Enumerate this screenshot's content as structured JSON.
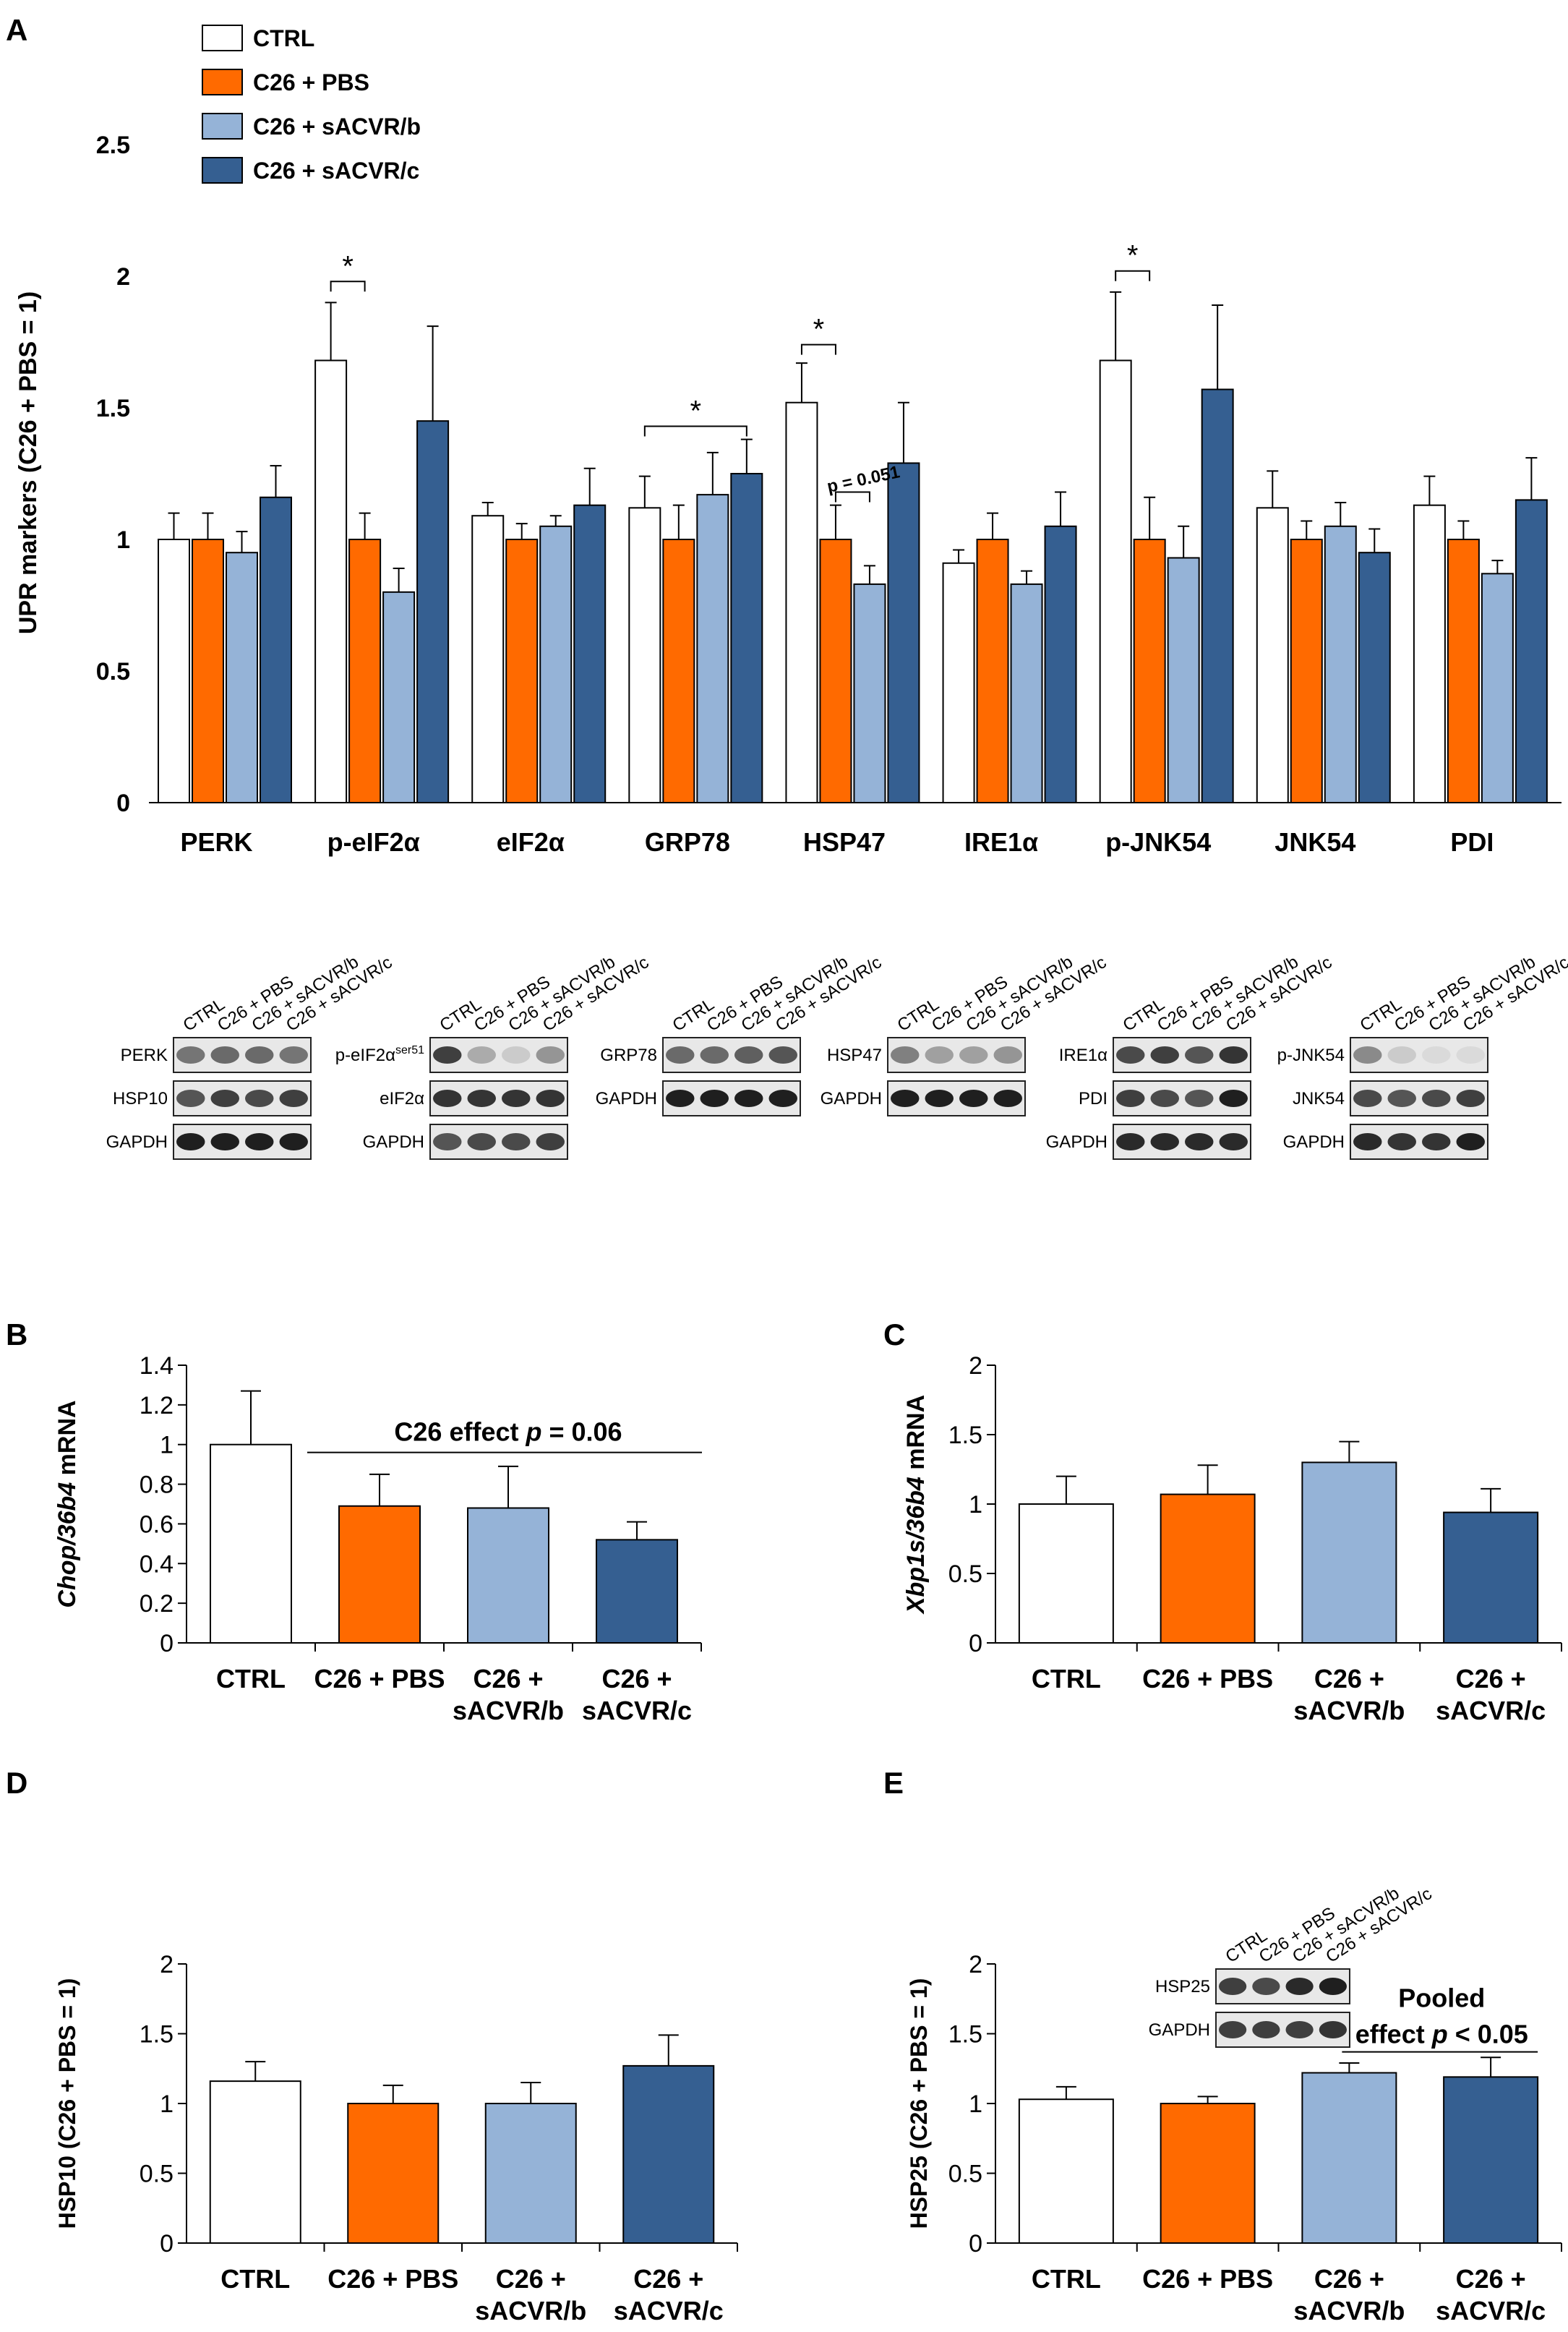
{
  "colors": {
    "ctrl": "#ffffff",
    "pbs": "#ff6a00",
    "sacvr_b": "#95b3d7",
    "sacvr_c": "#355f91"
  },
  "chart_data": [
    {
      "panel": "A",
      "type": "bar",
      "ylabel": "UPR markers (C26 + PBS = 1)",
      "ylim": [
        0,
        2.5
      ],
      "yticks": [
        "0",
        "0.5",
        "1",
        "1.5",
        "2",
        "2.5"
      ],
      "categories": [
        "PERK",
        "p-eIF2α",
        "eIF2α",
        "GRP78",
        "HSP47",
        "IRE1α",
        "p-JNK54",
        "JNK54",
        "PDI"
      ],
      "legend": [
        "CTRL",
        "C26 + PBS",
        "C26 + sACVR/b",
        "C26 + sACVR/c"
      ],
      "series": [
        {
          "name": "CTRL",
          "values": [
            1.0,
            1.68,
            1.09,
            1.12,
            1.52,
            0.91,
            1.68,
            1.12,
            1.13
          ],
          "errors": [
            0.1,
            0.22,
            0.05,
            0.12,
            0.15,
            0.05,
            0.26,
            0.14,
            0.11
          ]
        },
        {
          "name": "C26 + PBS",
          "values": [
            1.0,
            1.0,
            1.0,
            1.0,
            1.0,
            1.0,
            1.0,
            1.0,
            1.0
          ],
          "errors": [
            0.1,
            0.1,
            0.06,
            0.13,
            0.13,
            0.1,
            0.16,
            0.07,
            0.07
          ]
        },
        {
          "name": "C26 + sACVR/b",
          "values": [
            0.95,
            0.8,
            1.05,
            1.17,
            0.83,
            0.83,
            0.93,
            1.05,
            0.87
          ],
          "errors": [
            0.08,
            0.09,
            0.04,
            0.16,
            0.07,
            0.05,
            0.12,
            0.09,
            0.05
          ]
        },
        {
          "name": "C26 + sACVR/c",
          "values": [
            1.16,
            1.45,
            1.13,
            1.25,
            1.29,
            1.05,
            1.57,
            0.95,
            1.15
          ],
          "errors": [
            0.12,
            0.36,
            0.14,
            0.13,
            0.23,
            0.13,
            0.32,
            0.09,
            0.16
          ]
        }
      ],
      "annotations": [
        "*",
        "*",
        "*",
        "*",
        "p = 0.051"
      ]
    },
    {
      "panel": "B",
      "type": "bar",
      "ylabel_italic": "Chop/36b4",
      "ylabel_rest": " mRNA",
      "ylim": [
        0,
        1.4
      ],
      "yticks": [
        "0",
        "0.2",
        "0.4",
        "0.6",
        "0.8",
        "1",
        "1.2",
        "1.4"
      ],
      "categories": [
        [
          "CTRL"
        ],
        [
          "C26 + PBS"
        ],
        [
          "C26 +",
          "sACVR/b"
        ],
        [
          "C26 +",
          "sACVR/c"
        ]
      ],
      "values": [
        1.0,
        0.69,
        0.68,
        0.52
      ],
      "errors": [
        0.27,
        0.16,
        0.21,
        0.09
      ],
      "annotation_prefix": "C26 effect ",
      "annotation_p": "p",
      "annotation_suffix": " = 0.06"
    },
    {
      "panel": "C",
      "type": "bar",
      "ylabel_italic": "Xbp1s/36b4",
      "ylabel_rest": " mRNA",
      "ylim": [
        0,
        2
      ],
      "yticks": [
        "0",
        "0.5",
        "1",
        "1.5",
        "2"
      ],
      "categories": [
        [
          "CTRL"
        ],
        [
          "C26 + PBS"
        ],
        [
          "C26 +",
          "sACVR/b"
        ],
        [
          "C26 +",
          "sACVR/c"
        ]
      ],
      "values": [
        1.0,
        1.07,
        1.3,
        0.94
      ],
      "errors": [
        0.2,
        0.21,
        0.15,
        0.17
      ]
    },
    {
      "panel": "D",
      "type": "bar",
      "ylabel": "HSP10 (C26 + PBS = 1)",
      "ylim": [
        0,
        2
      ],
      "yticks": [
        "0",
        "0.5",
        "1",
        "1.5",
        "2"
      ],
      "categories": [
        [
          "CTRL"
        ],
        [
          "C26 + PBS"
        ],
        [
          "C26 +",
          "sACVR/b"
        ],
        [
          "C26 +",
          "sACVR/c"
        ]
      ],
      "values": [
        1.16,
        1.0,
        1.0,
        1.27
      ],
      "errors": [
        0.14,
        0.13,
        0.15,
        0.22
      ]
    },
    {
      "panel": "E",
      "type": "bar",
      "ylabel": "HSP25 (C26 + PBS = 1)",
      "ylim": [
        0,
        2
      ],
      "yticks": [
        "0",
        "0.5",
        "1",
        "1.5",
        "2"
      ],
      "categories": [
        [
          "CTRL"
        ],
        [
          "C26 + PBS"
        ],
        [
          "C26 +",
          "sACVR/b"
        ],
        [
          "C26 +",
          "sACVR/c"
        ]
      ],
      "values": [
        1.03,
        1.0,
        1.22,
        1.19
      ],
      "errors": [
        0.09,
        0.05,
        0.07,
        0.14
      ],
      "annotation_line1": "Pooled",
      "annotation_prefix": "effect ",
      "annotation_p": "p",
      "annotation_suffix": " < 0.05"
    }
  ],
  "blots": {
    "lanes": [
      "CTRL",
      "C26 + PBS",
      "C26 + sACVR/b",
      "C26 + sACVR/c"
    ],
    "groups": [
      {
        "bands": [
          "PERK",
          "HSP10",
          "GAPDH"
        ]
      },
      {
        "bands": [
          "p-eIF2α",
          "eIF2α",
          "GAPDH"
        ],
        "superscript": "ser51"
      },
      {
        "bands": [
          "GRP78",
          "GAPDH"
        ]
      },
      {
        "bands": [
          "HSP47",
          "GAPDH"
        ]
      },
      {
        "bands": [
          "IRE1α",
          "PDI",
          "GAPDH"
        ]
      },
      {
        "bands": [
          "p-JNK54",
          "JNK54",
          "GAPDH"
        ]
      },
      {
        "bands": [
          "HSP25",
          "GAPDH"
        ]
      }
    ]
  }
}
